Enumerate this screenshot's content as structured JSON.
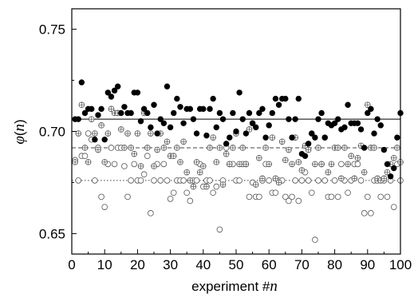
{
  "chart_data": {
    "type": "scatter",
    "title": "",
    "xlabel": "experiment #n",
    "xlabel_main": "experiment #",
    "xlabel_var": "n",
    "ylabel": "φ(n)",
    "ylabel_parts": {
      "phi": "φ",
      "open": "(",
      "var": "n",
      "close": ")"
    },
    "xlim": [
      0,
      100
    ],
    "ylim": [
      0.64,
      0.76
    ],
    "xticks": [
      0,
      10,
      20,
      30,
      40,
      50,
      60,
      70,
      80,
      90,
      100
    ],
    "xtick_labels": [
      "0",
      "10",
      "20",
      "30",
      "40",
      "50",
      "60",
      "70",
      "80",
      "90",
      "100"
    ],
    "yticks": [
      0.65,
      0.7,
      0.75
    ],
    "ytick_labels": [
      "0.65",
      "0.70",
      "0.75"
    ],
    "grid": false,
    "series": [
      {
        "marker": "filled-circle",
        "color": "#000000",
        "reference_line": {
          "y": 0.706,
          "style": "solid"
        },
        "points": [
          [
            1,
            0.706
          ],
          [
            2,
            0.706
          ],
          [
            3,
            0.724
          ],
          [
            4,
            0.709
          ],
          [
            5,
            0.711
          ],
          [
            6,
            0.711
          ],
          [
            7,
            0.696
          ],
          [
            8,
            0.708
          ],
          [
            9,
            0.711
          ],
          [
            10,
            0.696
          ],
          [
            11,
            0.719
          ],
          [
            12,
            0.717
          ],
          [
            13,
            0.72
          ],
          [
            14,
            0.722
          ],
          [
            15,
            0.709
          ],
          [
            16,
            0.712
          ],
          [
            17,
            0.709
          ],
          [
            18,
            0.709
          ],
          [
            19,
            0.719
          ],
          [
            20,
            0.719
          ],
          [
            21,
            0.705
          ],
          [
            22,
            0.711
          ],
          [
            23,
            0.709
          ],
          [
            24,
            0.702
          ],
          [
            25,
            0.713
          ],
          [
            26,
            0.699
          ],
          [
            27,
            0.706
          ],
          [
            28,
            0.704
          ],
          [
            29,
            0.722
          ],
          [
            30,
            0.702
          ],
          [
            31,
            0.709
          ],
          [
            32,
            0.716
          ],
          [
            33,
            0.712
          ],
          [
            34,
            0.704
          ],
          [
            35,
            0.711
          ],
          [
            36,
            0.711
          ],
          [
            37,
            0.706
          ],
          [
            38,
            0.699
          ],
          [
            39,
            0.711
          ],
          [
            40,
            0.711
          ],
          [
            41,
            0.698
          ],
          [
            42,
            0.711
          ],
          [
            43,
            0.716
          ],
          [
            44,
            0.702
          ],
          [
            45,
            0.709
          ],
          [
            46,
            0.706
          ],
          [
            47,
            0.694
          ],
          [
            48,
            0.697
          ],
          [
            49,
            0.709
          ],
          [
            50,
            0.7
          ],
          [
            51,
            0.719
          ],
          [
            52,
            0.706
          ],
          [
            53,
            0.699
          ],
          [
            54,
            0.709
          ],
          [
            55,
            0.704
          ],
          [
            56,
            0.702
          ],
          [
            57,
            0.709
          ],
          [
            58,
            0.711
          ],
          [
            59,
            0.697
          ],
          [
            60,
            0.703
          ],
          [
            61,
            0.709
          ],
          [
            62,
            0.716
          ],
          [
            63,
            0.713
          ],
          [
            64,
            0.716
          ],
          [
            65,
            0.716
          ],
          [
            66,
            0.706
          ],
          [
            67,
            0.697
          ],
          [
            68,
            0.706
          ],
          [
            69,
            0.716
          ],
          [
            70,
            0.689
          ],
          [
            71,
            0.688
          ],
          [
            72,
            0.694
          ],
          [
            73,
            0.699
          ],
          [
            74,
            0.697
          ],
          [
            75,
            0.706
          ],
          [
            76,
            0.709
          ],
          [
            77,
            0.697
          ],
          [
            78,
            0.704
          ],
          [
            79,
            0.703
          ],
          [
            80,
            0.704
          ],
          [
            81,
            0.706
          ],
          [
            82,
            0.701
          ],
          [
            83,
            0.702
          ],
          [
            84,
            0.713
          ],
          [
            85,
            0.704
          ],
          [
            86,
            0.704
          ],
          [
            87,
            0.704
          ],
          [
            88,
            0.701
          ],
          [
            89,
            0.692
          ],
          [
            90,
            0.709
          ],
          [
            91,
            0.711
          ],
          [
            92,
            0.699
          ],
          [
            93,
            0.706
          ],
          [
            94,
            0.703
          ],
          [
            95,
            0.691
          ],
          [
            96,
            0.684
          ],
          [
            97,
            0.678
          ],
          [
            98,
            0.682
          ],
          [
            99,
            0.697
          ],
          [
            100,
            0.709
          ]
        ]
      },
      {
        "marker": "crossed-circle",
        "color": "#555555",
        "reference_line": {
          "y": 0.692,
          "style": "dashed"
        },
        "points": [
          [
            1,
            0.685
          ],
          [
            2,
            0.699
          ],
          [
            3,
            0.713
          ],
          [
            4,
            0.692
          ],
          [
            5,
            0.685
          ],
          [
            6,
            0.706
          ],
          [
            7,
            0.699
          ],
          [
            8,
            0.691
          ],
          [
            9,
            0.703
          ],
          [
            10,
            0.685
          ],
          [
            11,
            0.699
          ],
          [
            12,
            0.711
          ],
          [
            13,
            0.709
          ],
          [
            14,
            0.709
          ],
          [
            15,
            0.701
          ],
          [
            16,
            0.692
          ],
          [
            17,
            0.699
          ],
          [
            18,
            0.692
          ],
          [
            19,
            0.689
          ],
          [
            20,
            0.699
          ],
          [
            21,
            0.683
          ],
          [
            22,
            0.709
          ],
          [
            23,
            0.692
          ],
          [
            24,
            0.699
          ],
          [
            25,
            0.683
          ],
          [
            26,
            0.691
          ],
          [
            27,
            0.699
          ],
          [
            28,
            0.692
          ],
          [
            29,
            0.695
          ],
          [
            30,
            0.688
          ],
          [
            31,
            0.688
          ],
          [
            32,
            0.692
          ],
          [
            33,
            0.685
          ],
          [
            34,
            0.695
          ],
          [
            35,
            0.68
          ],
          [
            36,
            0.676
          ],
          [
            37,
            0.673
          ],
          [
            38,
            0.685
          ],
          [
            39,
            0.68
          ],
          [
            40,
            0.683
          ],
          [
            41,
            0.673
          ],
          [
            42,
            0.692
          ],
          [
            43,
            0.697
          ],
          [
            44,
            0.685
          ],
          [
            45,
            0.692
          ],
          [
            46,
            0.674
          ],
          [
            47,
            0.689
          ],
          [
            48,
            0.684
          ],
          [
            49,
            0.692
          ],
          [
            50,
            0.699
          ],
          [
            51,
            0.684
          ],
          [
            52,
            0.692
          ],
          [
            53,
            0.684
          ],
          [
            54,
            0.701
          ],
          [
            55,
            0.704
          ],
          [
            56,
            0.674
          ],
          [
            57,
            0.687
          ],
          [
            58,
            0.677
          ],
          [
            59,
            0.692
          ],
          [
            60,
            0.684
          ],
          [
            61,
            0.697
          ],
          [
            62,
            0.677
          ],
          [
            63,
            0.675
          ],
          [
            64,
            0.695
          ],
          [
            65,
            0.686
          ],
          [
            66,
            0.691
          ],
          [
            67,
            0.684
          ],
          [
            68,
            0.697
          ],
          [
            69,
            0.685
          ],
          [
            70,
            0.681
          ],
          [
            71,
            0.693
          ],
          [
            72,
            0.691
          ],
          [
            73,
            0.699
          ],
          [
            74,
            0.684
          ],
          [
            75,
            0.692
          ],
          [
            76,
            0.684
          ],
          [
            77,
            0.697
          ],
          [
            78,
            0.68
          ],
          [
            79,
            0.684
          ],
          [
            80,
            0.692
          ],
          [
            81,
            0.692
          ],
          [
            82,
            0.677
          ],
          [
            83,
            0.692
          ],
          [
            84,
            0.684
          ],
          [
            85,
            0.688
          ],
          [
            86,
            0.677
          ],
          [
            87,
            0.687
          ],
          [
            88,
            0.693
          ],
          [
            89,
            0.68
          ],
          [
            90,
            0.713
          ],
          [
            91,
            0.692
          ],
          [
            92,
            0.692
          ],
          [
            93,
            0.677
          ],
          [
            94,
            0.676
          ],
          [
            95,
            0.677
          ],
          [
            96,
            0.68
          ],
          [
            97,
            0.684
          ],
          [
            98,
            0.687
          ],
          [
            99,
            0.692
          ],
          [
            100,
            0.685
          ]
        ]
      },
      {
        "marker": "open-circle",
        "color": "#555555",
        "reference_line": {
          "y": 0.676,
          "style": "dotted"
        },
        "points": [
          [
            1,
            0.686
          ],
          [
            2,
            0.676
          ],
          [
            3,
            0.688
          ],
          [
            4,
            0.688
          ],
          [
            5,
            0.699
          ],
          [
            6,
            0.696
          ],
          [
            7,
            0.676
          ],
          [
            8,
            0.692
          ],
          [
            9,
            0.668
          ],
          [
            10,
            0.663
          ],
          [
            11,
            0.684
          ],
          [
            12,
            0.692
          ],
          [
            13,
            0.684
          ],
          [
            14,
            0.692
          ],
          [
            15,
            0.692
          ],
          [
            16,
            0.683
          ],
          [
            17,
            0.668
          ],
          [
            18,
            0.676
          ],
          [
            19,
            0.684
          ],
          [
            20,
            0.676
          ],
          [
            21,
            0.676
          ],
          [
            22,
            0.679
          ],
          [
            23,
            0.688
          ],
          [
            24,
            0.66
          ],
          [
            25,
            0.676
          ],
          [
            26,
            0.684
          ],
          [
            27,
            0.676
          ],
          [
            28,
            0.684
          ],
          [
            29,
            0.676
          ],
          [
            30,
            0.667
          ],
          [
            31,
            0.67
          ],
          [
            32,
            0.676
          ],
          [
            33,
            0.676
          ],
          [
            34,
            0.676
          ],
          [
            35,
            0.67
          ],
          [
            36,
            0.666
          ],
          [
            37,
            0.676
          ],
          [
            38,
            0.676
          ],
          [
            39,
            0.684
          ],
          [
            40,
            0.673
          ],
          [
            41,
            0.676
          ],
          [
            42,
            0.676
          ],
          [
            43,
            0.67
          ],
          [
            44,
            0.673
          ],
          [
            45,
            0.652
          ],
          [
            46,
            0.676
          ],
          [
            47,
            0.692
          ],
          [
            48,
            0.684
          ],
          [
            49,
            0.684
          ],
          [
            50,
            0.676
          ],
          [
            51,
            0.676
          ],
          [
            52,
            0.684
          ],
          [
            53,
            0.684
          ],
          [
            54,
            0.668
          ],
          [
            55,
            0.675
          ],
          [
            56,
            0.668
          ],
          [
            57,
            0.668
          ],
          [
            58,
            0.676
          ],
          [
            59,
            0.684
          ],
          [
            60,
            0.676
          ],
          [
            61,
            0.67
          ],
          [
            62,
            0.67
          ],
          [
            63,
            0.676
          ],
          [
            64,
            0.676
          ],
          [
            65,
            0.668
          ],
          [
            66,
            0.666
          ],
          [
            67,
            0.668
          ],
          [
            68,
            0.676
          ],
          [
            69,
            0.666
          ],
          [
            70,
            0.676
          ],
          [
            71,
            0.68
          ],
          [
            72,
            0.676
          ],
          [
            73,
            0.67
          ],
          [
            74,
            0.647
          ],
          [
            75,
            0.676
          ],
          [
            76,
            0.684
          ],
          [
            77,
            0.676
          ],
          [
            78,
            0.668
          ],
          [
            79,
            0.668
          ],
          [
            80,
            0.676
          ],
          [
            81,
            0.668
          ],
          [
            82,
            0.684
          ],
          [
            83,
            0.676
          ],
          [
            84,
            0.67
          ],
          [
            85,
            0.676
          ],
          [
            86,
            0.684
          ],
          [
            87,
            0.684
          ],
          [
            88,
            0.676
          ],
          [
            89,
            0.66
          ],
          [
            90,
            0.668
          ],
          [
            91,
            0.66
          ],
          [
            92,
            0.676
          ],
          [
            93,
            0.676
          ],
          [
            94,
            0.668
          ],
          [
            95,
            0.676
          ],
          [
            96,
            0.668
          ],
          [
            97,
            0.676
          ],
          [
            98,
            0.663
          ],
          [
            99,
            0.684
          ],
          [
            100,
            0.676
          ]
        ]
      }
    ]
  }
}
